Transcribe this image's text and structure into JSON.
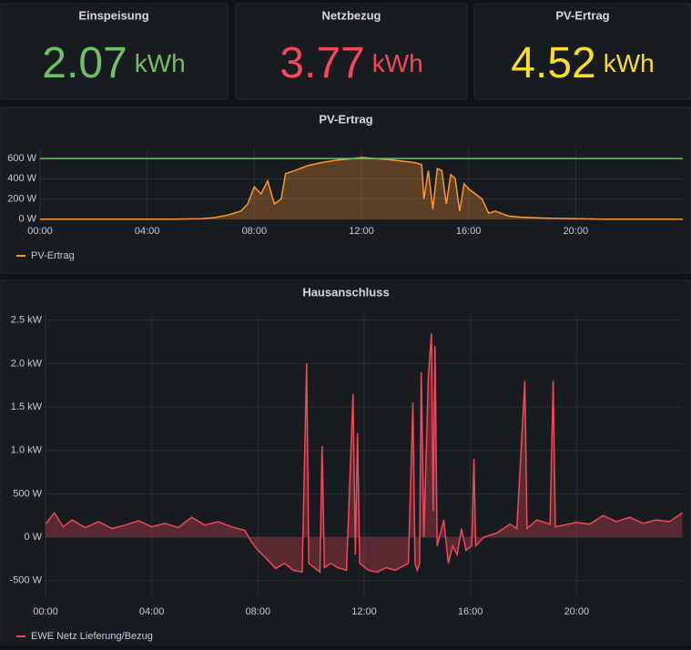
{
  "stats": [
    {
      "title": "Einspeisung",
      "value": 2.07,
      "unit": "kWh",
      "color": "#73bf69"
    },
    {
      "title": "Netzbezug",
      "value": 3.77,
      "unit": "kWh",
      "color": "#f2495c"
    },
    {
      "title": "PV-Ertrag",
      "value": 4.52,
      "unit": "kWh",
      "color": "#fade2a"
    }
  ],
  "chart_data": [
    {
      "type": "area",
      "title": "PV-Ertrag",
      "x": [
        "00:00",
        "05:00",
        "06:00",
        "06:30",
        "07:00",
        "07:30",
        "07:45",
        "08:00",
        "08:15",
        "08:30",
        "08:45",
        "09:00",
        "09:10",
        "09:30",
        "10:00",
        "10:30",
        "11:00",
        "11:30",
        "12:00",
        "12:30",
        "13:00",
        "13:30",
        "14:00",
        "14:15",
        "14:20",
        "14:30",
        "14:40",
        "14:50",
        "15:00",
        "15:10",
        "15:20",
        "15:30",
        "15:40",
        "15:50",
        "16:00",
        "16:30",
        "16:45",
        "17:00",
        "17:30",
        "18:00",
        "19:00",
        "20:00",
        "21:00",
        "24:00"
      ],
      "series": [
        {
          "name": "PV-Ertrag",
          "color": "#ff9830",
          "values": [
            0,
            0,
            5,
            15,
            40,
            80,
            150,
            320,
            250,
            380,
            150,
            200,
            450,
            480,
            530,
            560,
            580,
            595,
            610,
            600,
            590,
            575,
            560,
            540,
            200,
            480,
            100,
            500,
            480,
            150,
            440,
            400,
            80,
            350,
            300,
            200,
            60,
            80,
            30,
            20,
            10,
            5,
            0,
            0
          ]
        }
      ],
      "threshold": {
        "value": 600,
        "color": "#73bf69"
      },
      "xlim": [
        0,
        24
      ],
      "xticks": [
        {
          "value": 0,
          "label": "00:00"
        },
        {
          "value": 4,
          "label": "04:00"
        },
        {
          "value": 8,
          "label": "08:00"
        },
        {
          "value": 12,
          "label": "12:00"
        },
        {
          "value": 16,
          "label": "16:00"
        },
        {
          "value": 20,
          "label": "20:00"
        }
      ],
      "ylim": [
        -20,
        700
      ],
      "yticks": [
        {
          "value": 0,
          "label": "0 W"
        },
        {
          "value": 200,
          "label": "200 W"
        },
        {
          "value": 400,
          "label": "400 W"
        },
        {
          "value": 600,
          "label": "600 W"
        }
      ],
      "grid": true,
      "legend": "bottom-left"
    },
    {
      "type": "area",
      "title": "Hausanschluss",
      "x": [
        "00:00",
        "00:20",
        "00:40",
        "01:00",
        "01:30",
        "02:00",
        "02:30",
        "03:00",
        "03:30",
        "04:00",
        "04:30",
        "05:00",
        "05:30",
        "06:00",
        "06:30",
        "07:00",
        "07:30",
        "07:45",
        "08:00",
        "08:20",
        "08:40",
        "09:00",
        "09:20",
        "09:40",
        "09:50",
        "09:55",
        "10:20",
        "10:25",
        "10:30",
        "10:45",
        "11:00",
        "11:20",
        "11:35",
        "11:40",
        "11:45",
        "11:50",
        "12:10",
        "12:30",
        "12:50",
        "13:10",
        "13:40",
        "13:50",
        "13:55",
        "14:00",
        "14:05",
        "14:09",
        "14:15",
        "14:25",
        "14:32",
        "14:36",
        "14:40",
        "14:45",
        "15:00",
        "15:10",
        "15:20",
        "15:30",
        "15:40",
        "15:50",
        "16:03",
        "16:08",
        "16:12",
        "16:30",
        "17:00",
        "17:30",
        "17:45",
        "18:03",
        "18:08",
        "18:30",
        "19:00",
        "19:07",
        "19:12",
        "20:00",
        "20:30",
        "21:00",
        "21:30",
        "22:00",
        "22:30",
        "23:00",
        "23:30",
        "23:59"
      ],
      "series": [
        {
          "name": "EWE Netz Lieferung/Bezug",
          "color": "#f2495c",
          "values": [
            150,
            280,
            120,
            200,
            110,
            180,
            100,
            140,
            190,
            120,
            160,
            110,
            230,
            140,
            180,
            120,
            80,
            -50,
            -150,
            -250,
            -360,
            -300,
            -380,
            -400,
            2000,
            -300,
            -400,
            1050,
            -350,
            -300,
            -350,
            -380,
            1650,
            -200,
            1200,
            -300,
            -380,
            -400,
            -350,
            -380,
            -300,
            1550,
            -300,
            -380,
            -300,
            1900,
            0,
            1850,
            2350,
            300,
            2200,
            -100,
            200,
            -300,
            -100,
            -200,
            100,
            -150,
            -100,
            900,
            -100,
            0,
            50,
            150,
            100,
            1800,
            100,
            200,
            150,
            1800,
            120,
            170,
            150,
            250,
            180,
            230,
            160,
            200,
            180,
            280
          ]
        }
      ],
      "xlim": [
        0,
        24
      ],
      "xticks": [
        {
          "value": 0,
          "label": "00:00"
        },
        {
          "value": 4,
          "label": "04:00"
        },
        {
          "value": 8,
          "label": "08:00"
        },
        {
          "value": 12,
          "label": "12:00"
        },
        {
          "value": 16,
          "label": "16:00"
        },
        {
          "value": 20,
          "label": "20:00"
        }
      ],
      "ylim": [
        -680,
        2570
      ],
      "yticks": [
        {
          "value": -500,
          "label": "-500 W"
        },
        {
          "value": 0,
          "label": "0 W"
        },
        {
          "value": 500,
          "label": "500 W"
        },
        {
          "value": 1000,
          "label": "1.0 kW"
        },
        {
          "value": 1500,
          "label": "1.5 kW"
        },
        {
          "value": 2000,
          "label": "2.0 kW"
        },
        {
          "value": 2500,
          "label": "2.5 kW"
        }
      ],
      "grid": true,
      "legend": "bottom-left"
    }
  ]
}
